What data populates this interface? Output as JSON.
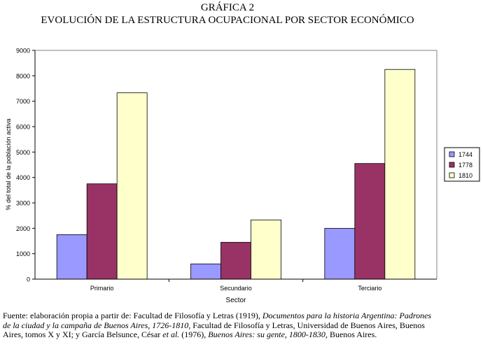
{
  "figure": {
    "number": "GRÁFICA 2",
    "title": "EVOLUCIÓN DE LA ESTRUCTURA OCUPACIONAL POR SECTOR ECONÓMICO"
  },
  "chart_data": {
    "type": "bar",
    "title": "EVOLUCIÓN DE LA ESTRUCTURA OCUPACIONAL POR SECTOR ECONÓMICO",
    "categories": [
      "Primario",
      "Secundario",
      "Terciario"
    ],
    "series": [
      {
        "name": "1744",
        "values": [
          1750,
          600,
          2000
        ]
      },
      {
        "name": "1778",
        "values": [
          3750,
          1450,
          4550
        ]
      },
      {
        "name": "1810",
        "values": [
          7330,
          2330,
          8250
        ]
      }
    ],
    "xlabel": "Sector",
    "ylabel": "% del total de la población activa",
    "ylim": [
      0,
      9000
    ],
    "yticks": [
      "0",
      "1000",
      "2000",
      "3000",
      "4000",
      "5000",
      "6000",
      "7000",
      "8000",
      "9000"
    ],
    "grid": false,
    "legend": "right",
    "colors": [
      "#9999ff",
      "#993366",
      "#ffffcc"
    ]
  },
  "footnote": {
    "p1": "Fuente: elaboración propia a partir de: Facultad de Filosofía y Letras (1919),  ",
    "i1": "Documentos para la historia Argentina: Padrones de la ciudad y la campaña de Buenos Aires, 1726-1810",
    "p2": ", Facultad de Filosofía y Letras, Universidad de Buenos Aires, Buenos Aires, tomos X y XI; y García Belsunce, César ",
    "i2": "et al.",
    "p3": "  (1976), ",
    "i3": "Buenos Aires: su gente, 1800-1830",
    "p4": ", Buenos Aires."
  }
}
